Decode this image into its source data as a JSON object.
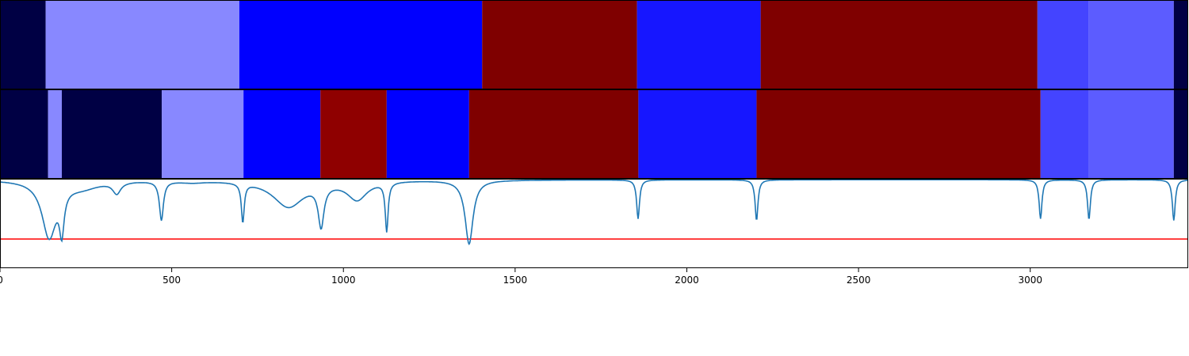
{
  "chart_data": {
    "type": "heatmap",
    "title": "",
    "xlabel": "",
    "ylabel": "",
    "xlim": [
      0,
      3460
    ],
    "x_ticks": [
      0,
      500,
      1000,
      1500,
      2000,
      2500,
      3000
    ],
    "x_tick_labels": [
      "0",
      "500",
      "1000",
      "1500",
      "2000",
      "2500",
      "3000"
    ],
    "grid": false,
    "segment_rows": [
      {
        "segments": [
          {
            "start": 0,
            "end": 133,
            "color": "#000044"
          },
          {
            "start": 133,
            "end": 697,
            "color": "#8888ff"
          },
          {
            "start": 697,
            "end": 1404,
            "color": "#0000ff"
          },
          {
            "start": 1404,
            "end": 1855,
            "color": "#7f0000"
          },
          {
            "start": 1855,
            "end": 2215,
            "color": "#1616ff"
          },
          {
            "start": 2215,
            "end": 3021,
            "color": "#7f0000"
          },
          {
            "start": 3021,
            "end": 3170,
            "color": "#4444ff"
          },
          {
            "start": 3170,
            "end": 3418,
            "color": "#5c5cff"
          },
          {
            "start": 3418,
            "end": 3460,
            "color": "#000044"
          }
        ]
      },
      {
        "segments": [
          {
            "start": 0,
            "end": 140,
            "color": "#000044"
          },
          {
            "start": 140,
            "end": 180,
            "color": "#8888ff"
          },
          {
            "start": 180,
            "end": 471,
            "color": "#000044"
          },
          {
            "start": 471,
            "end": 709,
            "color": "#8888ff"
          },
          {
            "start": 709,
            "end": 933,
            "color": "#0000ff"
          },
          {
            "start": 933,
            "end": 1126,
            "color": "#8f0000"
          },
          {
            "start": 1126,
            "end": 1366,
            "color": "#0000ff"
          },
          {
            "start": 1366,
            "end": 1859,
            "color": "#7f0000"
          },
          {
            "start": 1859,
            "end": 2203,
            "color": "#1616ff"
          },
          {
            "start": 2203,
            "end": 3030,
            "color": "#7f0000"
          },
          {
            "start": 3030,
            "end": 3171,
            "color": "#4444ff"
          },
          {
            "start": 3171,
            "end": 3418,
            "color": "#5c5cff"
          },
          {
            "start": 3418,
            "end": 3460,
            "color": "#000044"
          }
        ]
      }
    ],
    "line_panel": {
      "ylim": [
        0,
        1
      ],
      "threshold": 0.32,
      "threshold_color": "#ff0000",
      "line_color": "#1f77b4",
      "baseline": 0.99,
      "dips": [
        {
          "x": 143,
          "depth": 0.63,
          "width": 25
        },
        {
          "x": 180,
          "depth": 0.45,
          "width": 8
        },
        {
          "x": 240,
          "depth": 0.08,
          "width": 60
        },
        {
          "x": 340,
          "depth": 0.13,
          "width": 14
        },
        {
          "x": 470,
          "depth": 0.44,
          "width": 7
        },
        {
          "x": 560,
          "depth": 0.02,
          "width": 45
        },
        {
          "x": 707,
          "depth": 0.44,
          "width": 5
        },
        {
          "x": 840,
          "depth": 0.3,
          "width": 55
        },
        {
          "x": 935,
          "depth": 0.46,
          "width": 10
        },
        {
          "x": 1040,
          "depth": 0.21,
          "width": 35
        },
        {
          "x": 1126,
          "depth": 0.55,
          "width": 5
        },
        {
          "x": 1366,
          "depth": 0.72,
          "width": 14
        },
        {
          "x": 1858,
          "depth": 0.44,
          "width": 5
        },
        {
          "x": 2203,
          "depth": 0.46,
          "width": 5
        },
        {
          "x": 3030,
          "depth": 0.44,
          "width": 5
        },
        {
          "x": 3171,
          "depth": 0.45,
          "width": 5
        },
        {
          "x": 3418,
          "depth": 0.46,
          "width": 5
        }
      ]
    }
  }
}
